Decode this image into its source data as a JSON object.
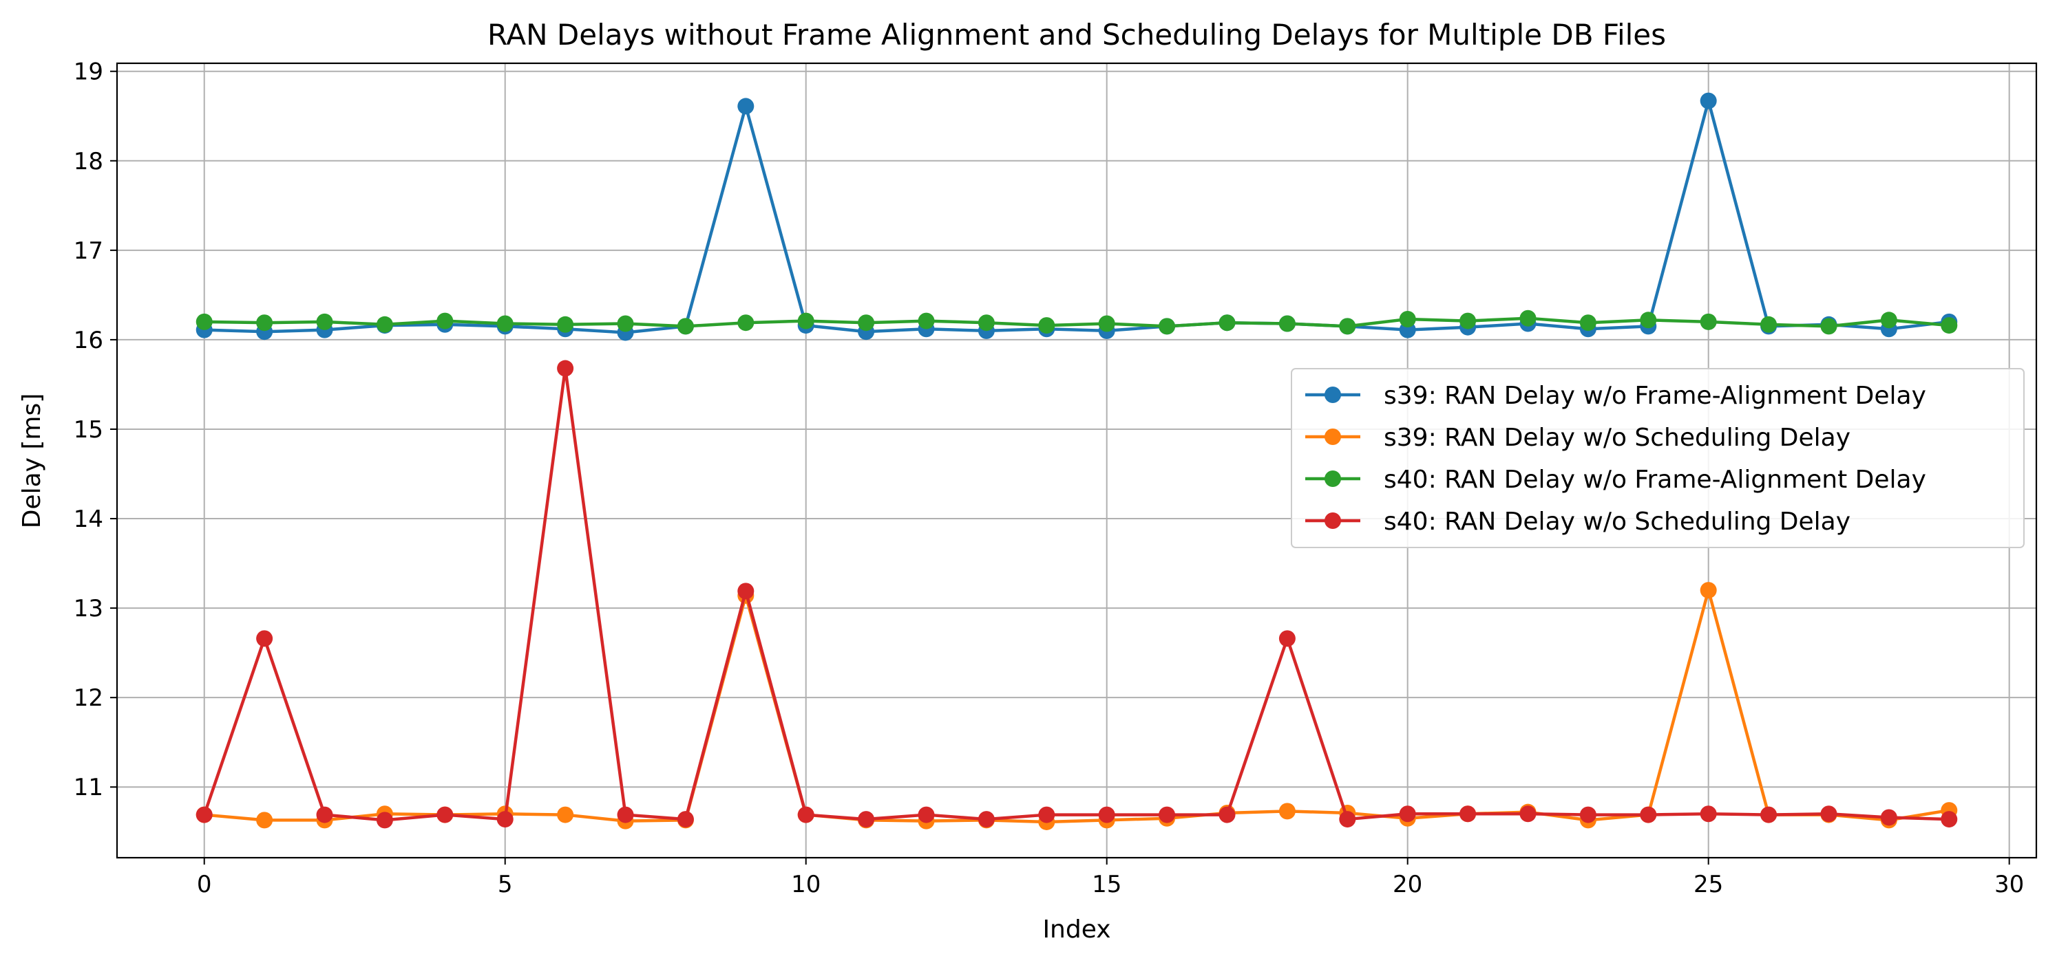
{
  "chart_data": {
    "type": "line",
    "title": "RAN Delays without Frame Alignment and Scheduling Delays for Multiple DB Files",
    "xlabel": "Index",
    "ylabel": "Delay [ms]",
    "xlim": [
      -1.45,
      30.45
    ],
    "ylim": [
      10.21,
      19.09
    ],
    "x_ticks": [
      0,
      5,
      10,
      15,
      20,
      25,
      30
    ],
    "y_ticks": [
      11,
      12,
      13,
      14,
      15,
      16,
      17,
      18,
      19
    ],
    "grid": true,
    "legend_position": "center-right",
    "x": [
      0,
      1,
      2,
      3,
      4,
      5,
      6,
      7,
      8,
      9,
      10,
      11,
      12,
      13,
      14,
      15,
      16,
      17,
      18,
      19,
      20,
      21,
      22,
      23,
      24,
      25,
      26,
      27,
      28,
      29
    ],
    "series": [
      {
        "name": "s39: RAN Delay w/o Frame-Alignment Delay",
        "color": "#1f77b4",
        "values": [
          16.11,
          16.09,
          16.11,
          16.16,
          16.17,
          16.15,
          16.12,
          16.08,
          16.15,
          18.61,
          16.16,
          16.09,
          16.12,
          16.1,
          16.12,
          16.1,
          16.15,
          16.19,
          16.18,
          16.15,
          16.11,
          16.14,
          16.18,
          16.12,
          16.15,
          18.67,
          16.15,
          16.17,
          16.12,
          16.2
        ]
      },
      {
        "name": "s39: RAN Delay w/o Scheduling Delay",
        "color": "#ff7f0e",
        "values": [
          10.69,
          10.63,
          10.63,
          10.7,
          10.69,
          10.7,
          10.69,
          10.62,
          10.63,
          13.14,
          10.69,
          10.63,
          10.62,
          10.63,
          10.61,
          10.63,
          10.65,
          10.71,
          10.73,
          10.71,
          10.65,
          10.7,
          10.72,
          10.63,
          10.69,
          13.2,
          10.69,
          10.69,
          10.63,
          10.74
        ]
      },
      {
        "name": "s40: RAN Delay w/o Frame-Alignment Delay",
        "color": "#2ca02c",
        "values": [
          16.2,
          16.19,
          16.2,
          16.17,
          16.21,
          16.18,
          16.17,
          16.18,
          16.15,
          16.19,
          16.21,
          16.19,
          16.21,
          16.19,
          16.16,
          16.18,
          16.15,
          16.19,
          16.18,
          16.15,
          16.23,
          16.21,
          16.24,
          16.19,
          16.22,
          16.2,
          16.17,
          16.15,
          16.22,
          16.16
        ]
      },
      {
        "name": "s40: RAN Delay w/o Scheduling Delay",
        "color": "#d62728",
        "values": [
          10.69,
          12.66,
          10.69,
          10.63,
          10.69,
          10.64,
          15.68,
          10.69,
          10.64,
          13.19,
          10.69,
          10.64,
          10.69,
          10.64,
          10.69,
          10.69,
          10.69,
          10.69,
          12.66,
          10.64,
          10.7,
          10.7,
          10.7,
          10.69,
          10.69,
          10.7,
          10.69,
          10.7,
          10.66,
          10.64
        ]
      }
    ]
  }
}
